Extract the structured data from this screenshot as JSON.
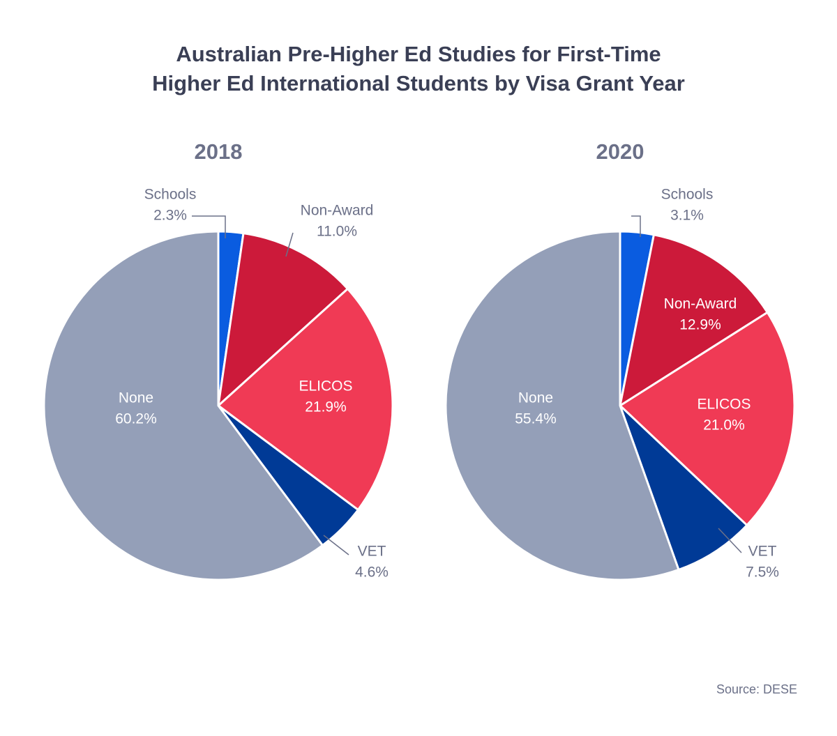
{
  "title": [
    "Australian Pre-Higher Ed Studies for First-Time",
    "Higher Ed International Students by Visa Grant Year"
  ],
  "source": "Source: DESE",
  "chart_data": [
    {
      "type": "pie",
      "title": "2018",
      "categories": [
        "Schools",
        "Non-Award",
        "ELICOS",
        "VET",
        "None"
      ],
      "values": [
        2.3,
        11.0,
        21.9,
        4.6,
        60.2
      ],
      "value_labels": [
        "2.3%",
        "11.0%",
        "21.9%",
        "4.6%",
        "60.2%"
      ],
      "colors": [
        "#0a5ce0",
        "#cc1a3a",
        "#f03a55",
        "#003a96",
        "#949fb8"
      ]
    },
    {
      "type": "pie",
      "title": "2020",
      "categories": [
        "Schools",
        "Non-Award",
        "ELICOS",
        "VET",
        "None"
      ],
      "values": [
        3.1,
        12.9,
        21.0,
        7.5,
        55.4
      ],
      "value_labels": [
        "3.1%",
        "12.9%",
        "21.0%",
        "7.5%",
        "55.4%"
      ],
      "colors": [
        "#0a5ce0",
        "#cc1a3a",
        "#f03a55",
        "#003a96",
        "#949fb8"
      ]
    }
  ]
}
